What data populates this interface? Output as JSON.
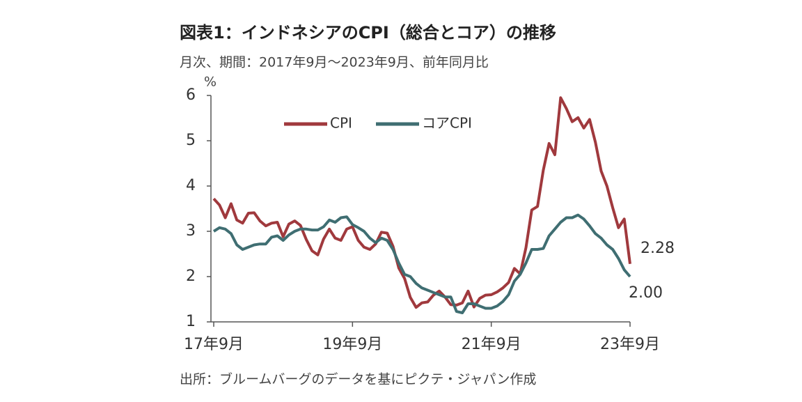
{
  "chart_data": {
    "type": "line",
    "title": "図表1：インドネシアのCPI（総合とコア）の推移",
    "subtitle": "月次、期間：2017年9月～2023年9月、前年同月比",
    "y_unit": "%",
    "source": "出所：ブルームバーグのデータを基にピクテ・ジャパン作成",
    "categories": [
      "17年9月",
      null,
      null,
      null,
      null,
      null,
      null,
      null,
      null,
      null,
      null,
      null,
      null,
      null,
      null,
      null,
      null,
      null,
      null,
      null,
      null,
      null,
      null,
      null,
      "19年9月",
      null,
      null,
      null,
      null,
      null,
      null,
      null,
      null,
      null,
      null,
      null,
      null,
      null,
      null,
      null,
      null,
      null,
      null,
      null,
      null,
      null,
      null,
      null,
      "21年9月",
      null,
      null,
      null,
      null,
      null,
      null,
      null,
      null,
      null,
      null,
      null,
      null,
      null,
      null,
      null,
      null,
      null,
      null,
      null,
      null,
      null,
      null,
      null,
      "23年9月"
    ],
    "ylim": [
      1,
      6
    ],
    "yticks": [
      1,
      2,
      3,
      4,
      5,
      6
    ],
    "legend": "top",
    "series": [
      {
        "name": "CPI",
        "color": "#a0393d",
        "values": [
          3.72,
          3.58,
          3.3,
          3.61,
          3.25,
          3.18,
          3.4,
          3.41,
          3.23,
          3.12,
          3.18,
          3.2,
          2.88,
          3.16,
          3.23,
          3.13,
          2.82,
          2.57,
          2.48,
          2.83,
          3.05,
          2.85,
          2.8,
          3.05,
          3.1,
          2.8,
          2.65,
          2.6,
          2.72,
          2.98,
          2.96,
          2.67,
          2.19,
          1.96,
          1.54,
          1.32,
          1.42,
          1.44,
          1.59,
          1.68,
          1.55,
          1.38,
          1.37,
          1.42,
          1.68,
          1.33,
          1.52,
          1.59,
          1.6,
          1.66,
          1.75,
          1.87,
          2.18,
          2.06,
          2.64,
          3.47,
          3.55,
          4.35,
          4.94,
          4.69,
          5.95,
          5.71,
          5.42,
          5.51,
          5.28,
          5.47,
          4.97,
          4.33,
          4.0,
          3.52,
          3.08,
          3.27,
          2.28
        ],
        "value_labels": [
          null,
          null,
          null,
          null,
          null,
          null,
          null,
          null,
          null,
          null,
          null,
          null,
          null,
          null,
          null,
          null,
          null,
          null,
          null,
          null,
          null,
          null,
          null,
          null,
          null,
          null,
          null,
          null,
          null,
          null,
          null,
          null,
          null,
          null,
          null,
          null,
          null,
          null,
          null,
          null,
          null,
          null,
          null,
          null,
          null,
          null,
          null,
          null,
          null,
          null,
          null,
          null,
          null,
          null,
          null,
          null,
          null,
          null,
          null,
          null,
          null,
          null,
          null,
          null,
          null,
          null,
          null,
          null,
          null,
          null,
          null,
          null,
          "2.28"
        ]
      },
      {
        "name": "コアCPI",
        "color": "#3f6e72",
        "values": [
          3.0,
          3.08,
          3.05,
          2.95,
          2.7,
          2.6,
          2.65,
          2.7,
          2.72,
          2.72,
          2.87,
          2.9,
          2.8,
          2.92,
          3.0,
          3.05,
          3.05,
          3.03,
          3.03,
          3.1,
          3.25,
          3.2,
          3.3,
          3.32,
          3.15,
          3.08,
          3.0,
          2.85,
          2.75,
          2.85,
          2.8,
          2.6,
          2.3,
          2.05,
          2.0,
          1.85,
          1.75,
          1.7,
          1.65,
          1.6,
          1.55,
          1.55,
          1.23,
          1.2,
          1.4,
          1.4,
          1.35,
          1.3,
          1.3,
          1.35,
          1.45,
          1.6,
          1.9,
          2.05,
          2.3,
          2.6,
          2.6,
          2.62,
          2.9,
          3.05,
          3.2,
          3.3,
          3.3,
          3.36,
          3.27,
          3.12,
          2.95,
          2.85,
          2.7,
          2.6,
          2.4,
          2.15,
          2.0
        ],
        "value_labels": [
          null,
          null,
          null,
          null,
          null,
          null,
          null,
          null,
          null,
          null,
          null,
          null,
          null,
          null,
          null,
          null,
          null,
          null,
          null,
          null,
          null,
          null,
          null,
          null,
          null,
          null,
          null,
          null,
          null,
          null,
          null,
          null,
          null,
          null,
          null,
          null,
          null,
          null,
          null,
          null,
          null,
          null,
          null,
          null,
          null,
          null,
          null,
          null,
          null,
          null,
          null,
          null,
          null,
          null,
          null,
          null,
          null,
          null,
          null,
          null,
          null,
          null,
          null,
          null,
          null,
          null,
          null,
          null,
          null,
          null,
          null,
          null,
          "2.00"
        ]
      }
    ]
  }
}
